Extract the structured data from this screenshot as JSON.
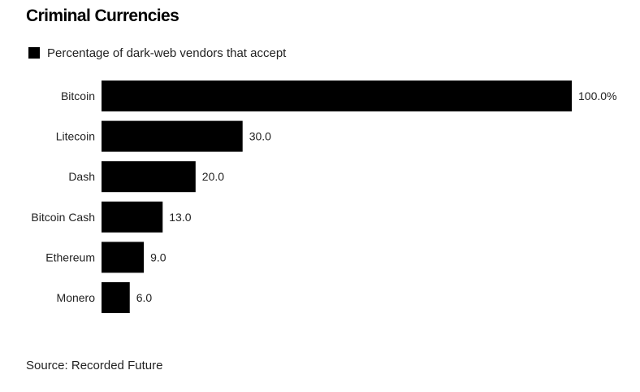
{
  "colors": {
    "bar": "#000000",
    "text": "#222222",
    "background": "#ffffff"
  },
  "chart_data": {
    "type": "bar",
    "orientation": "horizontal",
    "title": "Criminal Currencies",
    "legend": {
      "placement": "top-left",
      "entries": [
        {
          "label": "Percentage of dark-web vendors that accept",
          "color": "#000000"
        }
      ]
    },
    "categories": [
      "Bitcoin",
      "Litecoin",
      "Dash",
      "Bitcoin Cash",
      "Ethereum",
      "Monero"
    ],
    "series": [
      {
        "name": "Percentage of dark-web vendors that accept",
        "values": [
          100,
          30,
          20,
          13,
          9,
          6
        ]
      }
    ],
    "value_labels": [
      "100.0%",
      "30.0",
      "20.0",
      "13.0",
      "9.0",
      "6.0"
    ],
    "xlim": [
      0,
      100
    ],
    "grid": false,
    "source": "Source: Recorded Future"
  }
}
